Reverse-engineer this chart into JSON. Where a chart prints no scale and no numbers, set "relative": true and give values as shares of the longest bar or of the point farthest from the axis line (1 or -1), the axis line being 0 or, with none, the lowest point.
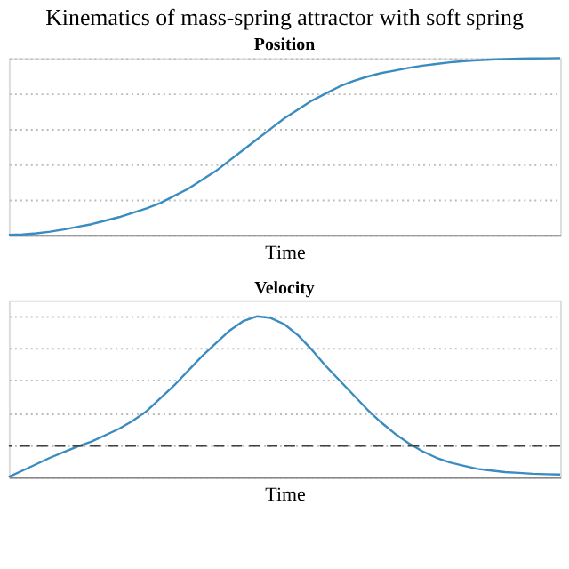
{
  "chart_data": [
    {
      "type": "line",
      "title": "Kinematics of mass-spring attractor with soft spring",
      "subtitle": "Position",
      "xlabel": "Time",
      "relative": true,
      "tick_labels": false,
      "grid": "y",
      "line_style": "solid",
      "marker": "none",
      "categories": [
        null,
        null,
        null,
        null,
        null,
        null,
        null,
        null,
        null,
        null,
        null,
        null,
        null,
        null,
        null,
        null,
        null,
        null,
        null,
        null,
        null,
        null,
        null,
        null,
        null,
        null,
        null,
        null,
        null,
        null,
        null,
        null,
        null,
        null,
        null,
        null,
        null,
        null,
        null,
        null,
        null
      ],
      "series": [
        {
          "color": "#3a8cc0",
          "values": [
            0,
            0.002,
            0.008,
            0.018,
            0.03,
            0.045,
            0.06,
            0.08,
            0.1,
            0.125,
            0.15,
            0.18,
            0.22,
            0.26,
            0.31,
            0.36,
            0.42,
            0.48,
            0.54,
            0.6,
            0.66,
            0.71,
            0.76,
            0.8,
            0.84,
            0.87,
            0.895,
            0.915,
            0.93,
            0.945,
            0.957,
            0.967,
            0.976,
            0.983,
            0.988,
            0.992,
            0.995,
            0.997,
            0.998,
            0.999,
            1
          ]
        }
      ]
    },
    {
      "type": "line",
      "title": "Velocity",
      "xlabel": "Time",
      "relative": true,
      "tick_labels": false,
      "grid": "y",
      "line_style": "solid",
      "marker": "none",
      "categories": [
        null,
        null,
        null,
        null,
        null,
        null,
        null,
        null,
        null,
        null,
        null,
        null,
        null,
        null,
        null,
        null,
        null,
        null,
        null,
        null,
        null,
        null,
        null,
        null,
        null,
        null,
        null,
        null,
        null,
        null,
        null,
        null,
        null,
        null,
        null,
        null,
        null,
        null,
        null,
        null,
        null
      ],
      "series": [
        {
          "color": "#3a8cc0",
          "values": [
            0,
            0.04,
            0.08,
            0.12,
            0.155,
            0.19,
            0.22,
            0.26,
            0.3,
            0.35,
            0.41,
            0.49,
            0.57,
            0.66,
            0.75,
            0.83,
            0.91,
            0.97,
            1,
            0.99,
            0.95,
            0.88,
            0.79,
            0.69,
            0.6,
            0.51,
            0.42,
            0.34,
            0.27,
            0.21,
            0.16,
            0.12,
            0.09,
            0.07,
            0.05,
            0.04,
            0.03,
            0.025,
            0.02,
            0.017,
            0.015
          ]
        }
      ],
      "ref_lines": [
        {
          "axis": "y",
          "value": 0.195,
          "color": "#404040",
          "line_style": "dashed"
        }
      ]
    }
  ]
}
